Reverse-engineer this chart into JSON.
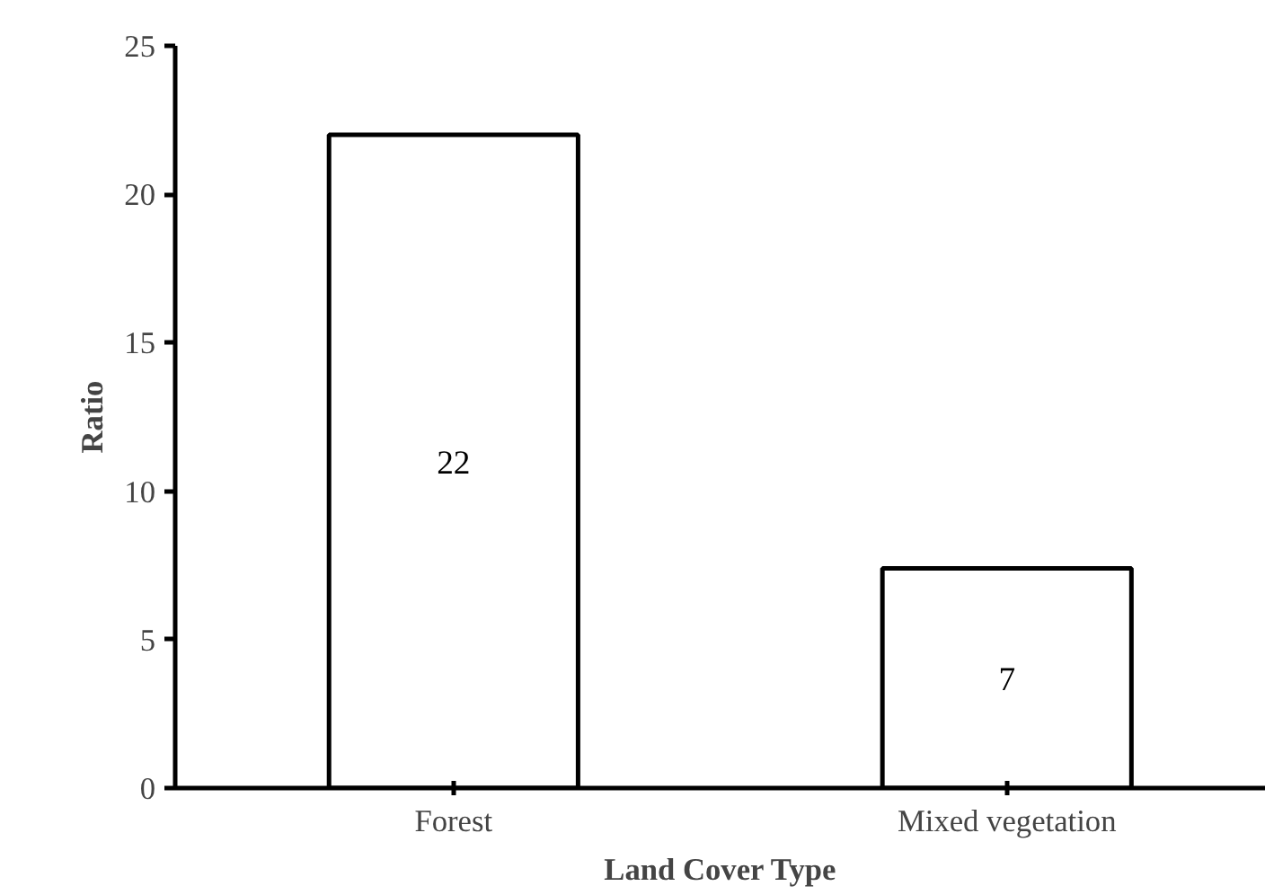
{
  "chart_data": {
    "type": "bar",
    "xlabel": "Land Cover Type",
    "ylabel": "Ratio",
    "categories": [
      "Forest",
      "Mixed vegetation"
    ],
    "values": [
      22,
      7.4
    ],
    "value_labels": [
      "22",
      "7"
    ],
    "color": "#ffffff",
    "ylim": [
      0,
      25
    ],
    "yticks": [
      0,
      5,
      10,
      15,
      20,
      25
    ],
    "grid": false
  }
}
